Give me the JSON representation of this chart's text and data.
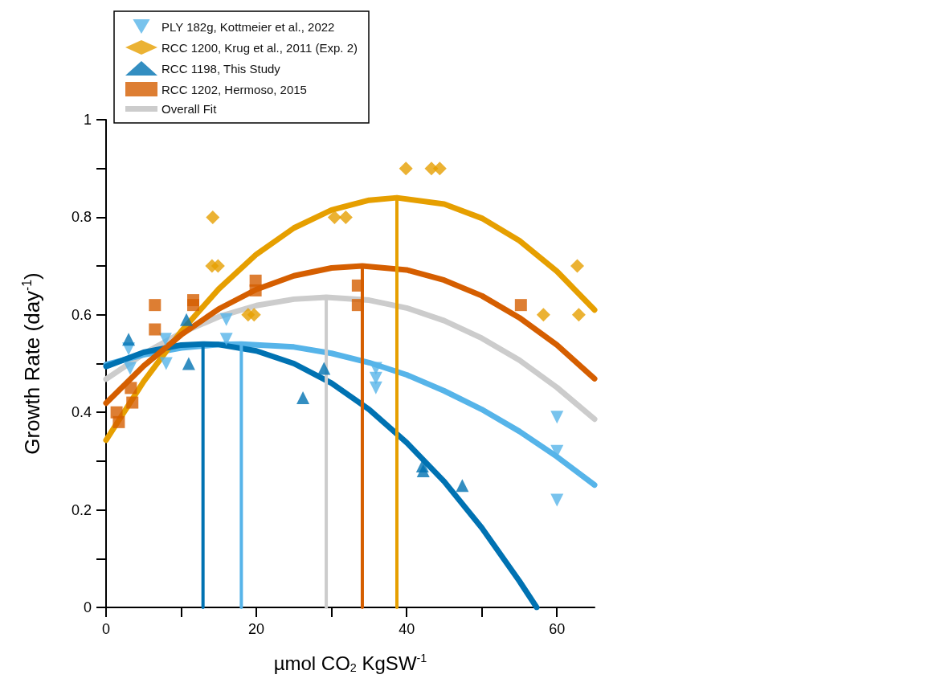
{
  "chart_data": {
    "type": "scatter",
    "xlabel": "µmol CO$_{2}$ KgSW$^{-1}$",
    "ylabel": "Growth Rate (day$^{-1}$)",
    "xlim": [
      0,
      65
    ],
    "xticks": [
      0,
      {
        "value": 10,
        "label": null
      },
      20,
      {
        "value": 30,
        "label": null
      },
      40,
      {
        "value": 50,
        "label": null
      },
      60
    ],
    "ylim": [
      0,
      1
    ],
    "yticks": [
      0,
      {
        "value": 0.1,
        "label": null
      },
      0.2,
      {
        "value": 0.3,
        "label": null
      },
      0.4,
      {
        "value": 0.5,
        "label": null
      },
      0.6,
      {
        "value": 0.7,
        "label": null
      },
      0.8,
      {
        "value": 0.9,
        "label": null
      },
      1
    ],
    "grid": false,
    "legend": "top left",
    "series": [
      {
        "name": "PLY 182g, Kottmeier et al., 2022",
        "marker": "triangle-down",
        "color": "#56b4e9",
        "x": [
          3.0,
          3.2,
          8.0,
          7.9,
          16.0,
          16.0,
          35.9,
          35.9,
          35.9,
          60.0,
          60.0,
          60.0
        ],
        "values": [
          0.53,
          0.49,
          0.5,
          0.55,
          0.55,
          0.59,
          0.49,
          0.47,
          0.45,
          0.39,
          0.32,
          0.22
        ]
      },
      {
        "name": "RCC 1200, Krug et al., 2011 (Exp. 2)",
        "marker": "diamond",
        "color": "#e69f00",
        "x": [
          14.2,
          14.1,
          14.9,
          18.9,
          19.7,
          30.4,
          31.9,
          39.9,
          43.3,
          44.4,
          62.7,
          58.2,
          62.9
        ],
        "values": [
          0.8,
          0.7,
          0.7,
          0.6,
          0.6,
          0.8,
          0.8,
          0.9,
          0.9,
          0.9,
          0.7,
          0.6,
          0.6
        ]
      },
      {
        "name": "RCC 1198, This Study",
        "marker": "triangle",
        "color": "#0072b2",
        "x": [
          3.0,
          11.0,
          10.7,
          29.0,
          26.2,
          42.1,
          42.2,
          47.4
        ],
        "values": [
          0.55,
          0.5,
          0.59,
          0.49,
          0.43,
          0.29,
          0.28,
          0.25
        ]
      },
      {
        "name": "RCC 1202, Hermoso, 2015",
        "marker": "square",
        "color": "#d55e00",
        "x": [
          6.5,
          6.5,
          11.6,
          11.6,
          19.9,
          19.9,
          3.3,
          3.5,
          1.4,
          1.7,
          33.5,
          33.5,
          55.2
        ],
        "values": [
          0.62,
          0.57,
          0.63,
          0.62,
          0.67,
          0.65,
          0.45,
          0.42,
          0.4,
          0.38,
          0.66,
          0.62,
          0.62
        ]
      },
      {
        "name": "Overall Fit",
        "type": "line",
        "marker": "none",
        "color": "#cccccc",
        "x": [
          0,
          5,
          10,
          15,
          20,
          25,
          29.3,
          35,
          40,
          45,
          50,
          55,
          60,
          65
        ],
        "values": [
          0.468,
          0.52,
          0.563,
          0.596,
          0.619,
          0.632,
          0.636,
          0.63,
          0.614,
          0.588,
          0.552,
          0.507,
          0.451,
          0.386
        ]
      },
      {
        "type": "line",
        "marker": "none",
        "color": "#56b4e9",
        "x": [
          0,
          5,
          10,
          15,
          18,
          25,
          30,
          35,
          40,
          45,
          50,
          55,
          60,
          65
        ],
        "values": [
          0.498,
          0.518,
          0.532,
          0.539,
          0.54,
          0.534,
          0.521,
          0.502,
          0.477,
          0.444,
          0.406,
          0.361,
          0.309,
          0.251
        ]
      },
      {
        "type": "line",
        "marker": "none",
        "color": "#e69f00",
        "x": [
          0,
          5,
          10,
          15,
          20,
          25,
          30,
          35,
          38.7,
          45,
          50,
          55,
          60,
          65
        ],
        "values": [
          0.343,
          0.463,
          0.566,
          0.653,
          0.724,
          0.778,
          0.815,
          0.835,
          0.84,
          0.827,
          0.798,
          0.752,
          0.689,
          0.61
        ]
      },
      {
        "type": "line",
        "marker": "none",
        "color": "#0072b2",
        "x": [
          0,
          5,
          10,
          12.9,
          15,
          20,
          25,
          30,
          35,
          40,
          45,
          50,
          55,
          57.3
        ],
        "values": [
          0.494,
          0.523,
          0.538,
          0.54,
          0.539,
          0.526,
          0.5,
          0.46,
          0.406,
          0.338,
          0.258,
          0.163,
          0.054,
          0.0
        ]
      },
      {
        "type": "line",
        "marker": "none",
        "color": "#d55e00",
        "x": [
          0,
          5,
          10,
          15,
          20,
          25,
          30,
          34.1,
          40,
          45,
          50,
          55,
          60,
          65
        ],
        "values": [
          0.419,
          0.495,
          0.559,
          0.612,
          0.652,
          0.68,
          0.696,
          0.7,
          0.692,
          0.671,
          0.639,
          0.594,
          0.538,
          0.469
        ]
      },
      {
        "type": "line",
        "marker": "none",
        "color": "#0072b2",
        "x": [
          12.9,
          12.9
        ],
        "values": [
          0,
          0.54
        ]
      },
      {
        "type": "line",
        "marker": "none",
        "color": "#56b4e9",
        "x": [
          18,
          18
        ],
        "values": [
          0,
          0.54
        ]
      },
      {
        "type": "line",
        "marker": "none",
        "color": "#cccccc",
        "x": [
          29.3,
          29.3
        ],
        "values": [
          0,
          0.636
        ]
      },
      {
        "type": "line",
        "marker": "none",
        "color": "#d55e00",
        "x": [
          34.1,
          34.1
        ],
        "values": [
          0,
          0.7
        ]
      },
      {
        "type": "line",
        "marker": "none",
        "color": "#e69f00",
        "x": [
          38.7,
          38.7
        ],
        "values": [
          0,
          0.84
        ]
      }
    ]
  }
}
